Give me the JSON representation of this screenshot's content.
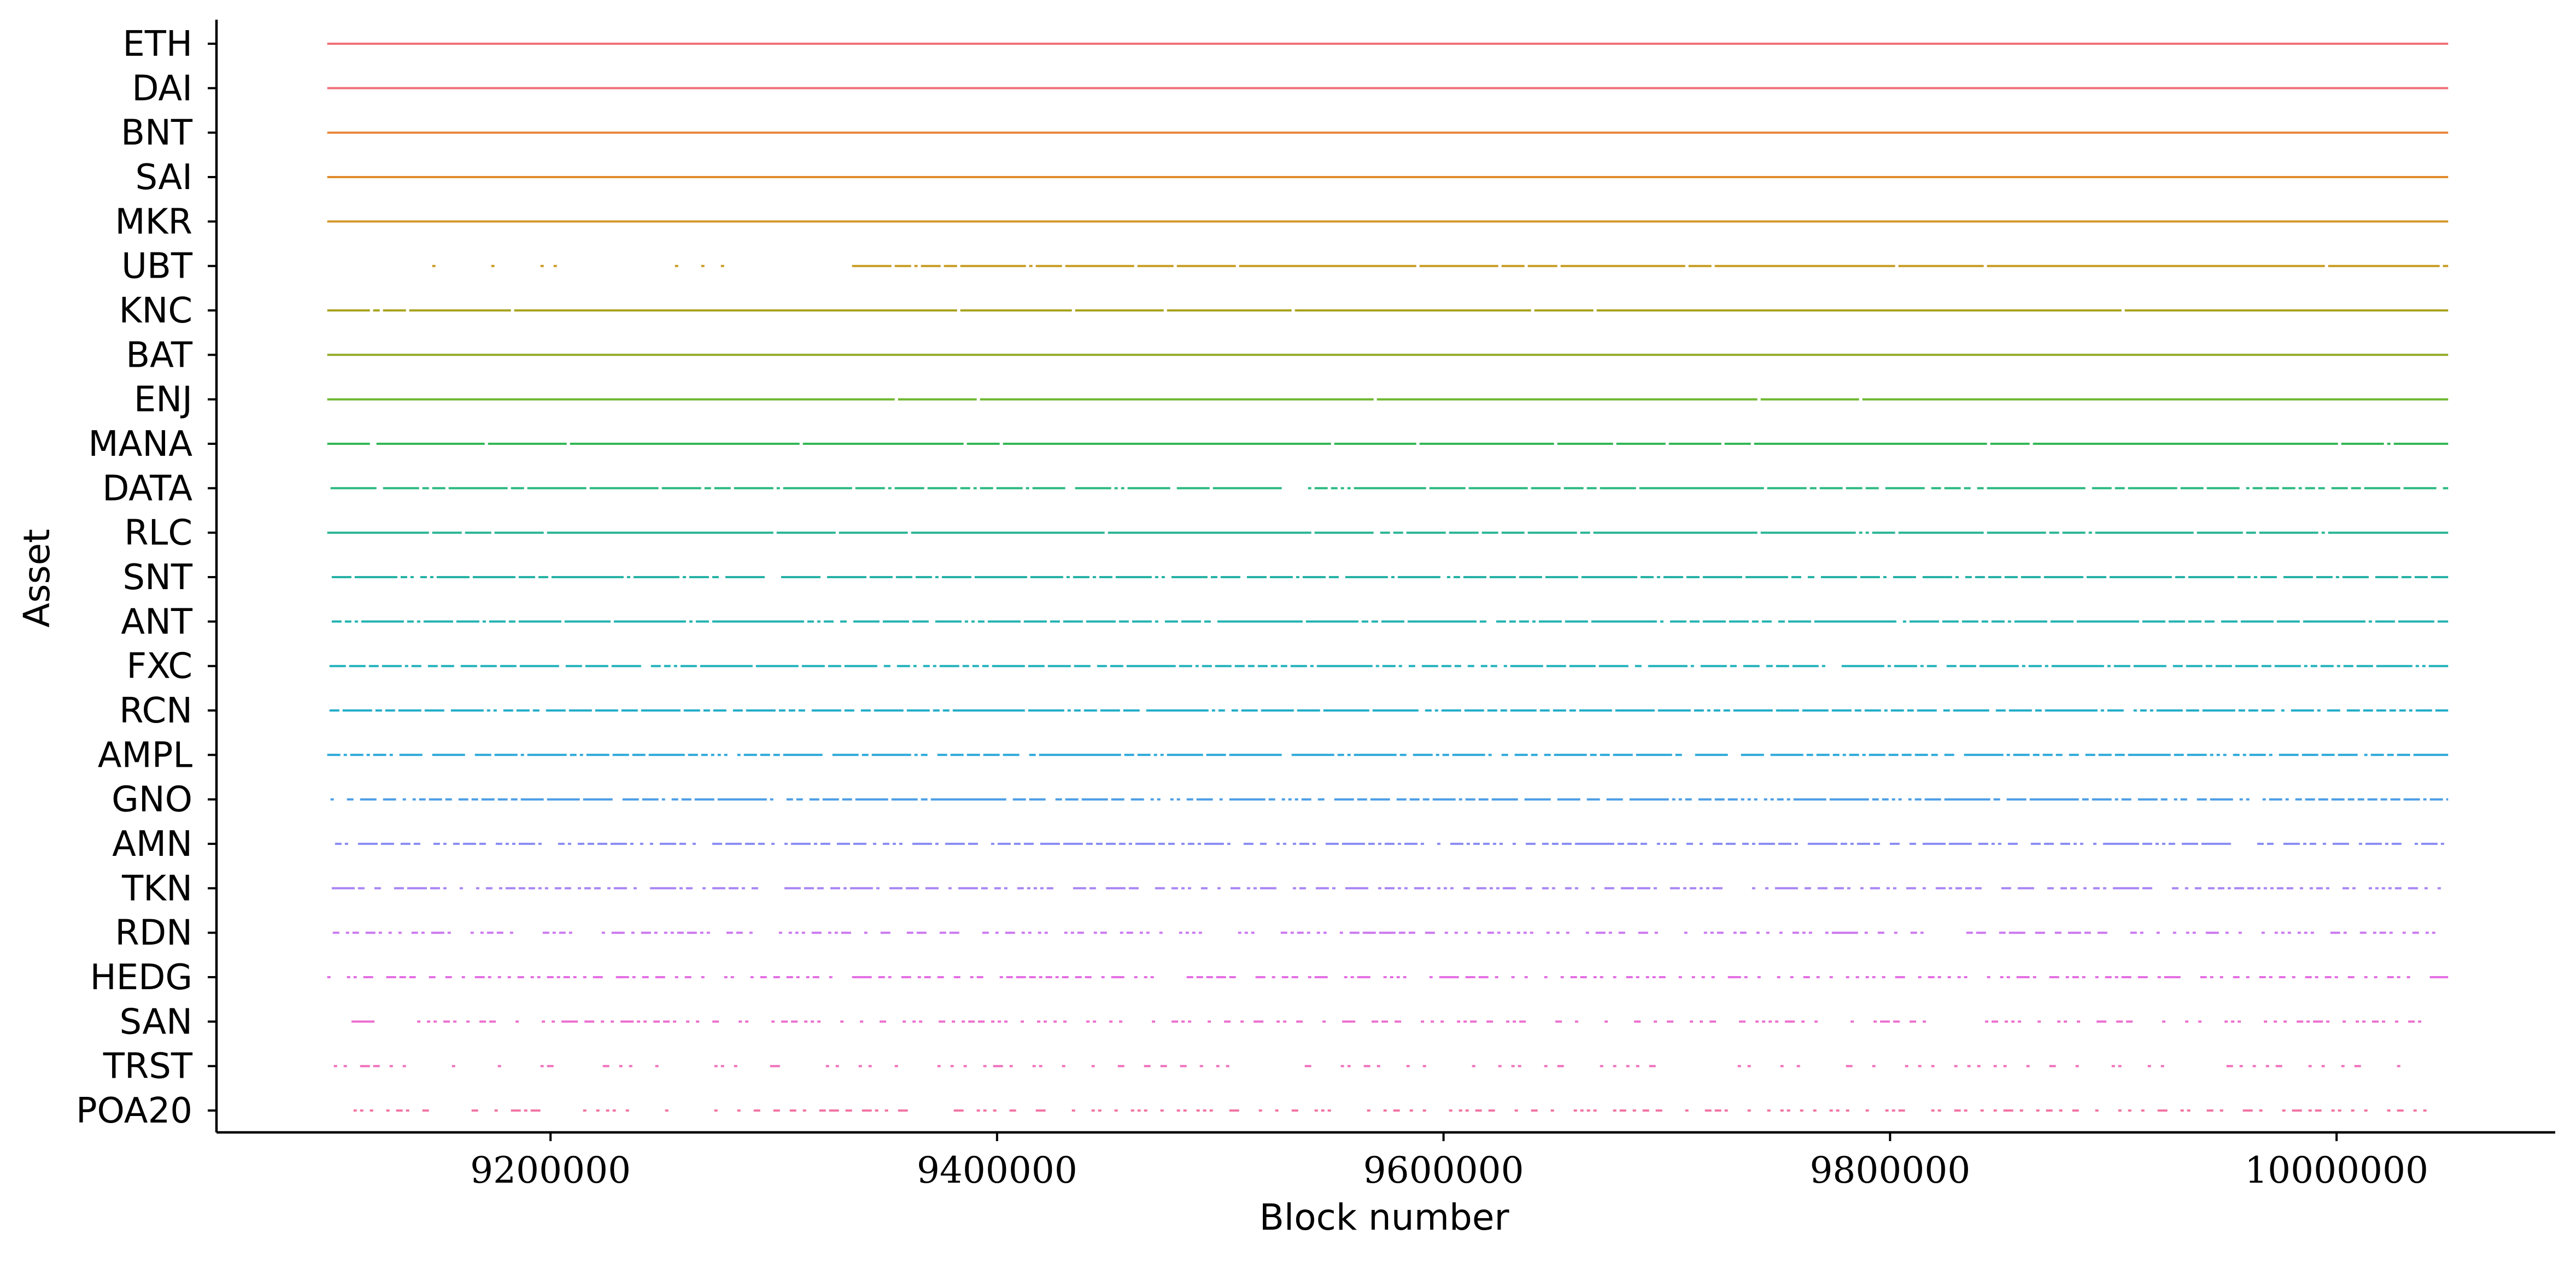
{
  "chart_data": {
    "type": "scatter",
    "title": "",
    "xlabel": "Block number",
    "ylabel": "Asset",
    "x_ticks": [
      9200000,
      9400000,
      9600000,
      9800000,
      10000000
    ],
    "x_tick_labels": [
      "9200000",
      "9400000",
      "9600000",
      "9800000",
      "10000000"
    ],
    "xlim": [
      9050000,
      10100000
    ],
    "data_range": [
      9100000,
      10050000
    ],
    "grid": false,
    "legend": "none",
    "series": [
      {
        "label": "ETH",
        "color": "#f0717a",
        "density": 1.0,
        "start": 9100000,
        "end": 10050000
      },
      {
        "label": "DAI",
        "color": "#f0717a",
        "density": 1.0,
        "start": 9100000,
        "end": 10050000
      },
      {
        "label": "BNT",
        "color": "#e8873c",
        "density": 1.0,
        "start": 9100000,
        "end": 10050000
      },
      {
        "label": "SAI",
        "color": "#e08b2b",
        "density": 1.0,
        "start": 9100000,
        "end": 10050000
      },
      {
        "label": "MKR",
        "color": "#d4972b",
        "density": 1.0,
        "start": 9100000,
        "end": 10050000
      },
      {
        "label": "UBT",
        "color": "#c79c22",
        "density": 0.97,
        "start": 9100000,
        "end": 10050000,
        "gap_from": 9300000,
        "gap_to": 9335000,
        "sparse_before": 9335000
      },
      {
        "label": "KNC",
        "color": "#a9a422",
        "density": 0.98,
        "start": 9100000,
        "end": 10050000
      },
      {
        "label": "BAT",
        "color": "#92ad2b",
        "density": 1.0,
        "start": 9100000,
        "end": 10050000
      },
      {
        "label": "ENJ",
        "color": "#6eb830",
        "density": 0.99,
        "start": 9100000,
        "end": 10050000
      },
      {
        "label": "MANA",
        "color": "#34b857",
        "density": 0.97,
        "start": 9100000,
        "end": 10050000
      },
      {
        "label": "DATA",
        "color": "#2dba82",
        "density": 0.85,
        "start": 9100000,
        "end": 10050000,
        "gap_from": 9527000,
        "gap_to": 9538000
      },
      {
        "label": "RLC",
        "color": "#2bb694",
        "density": 0.95,
        "start": 9100000,
        "end": 10050000
      },
      {
        "label": "SNT",
        "color": "#24b3a5",
        "density": 0.85,
        "start": 9102000,
        "end": 10050000
      },
      {
        "label": "ANT",
        "color": "#23b3b0",
        "density": 0.87,
        "start": 9102000,
        "end": 10050000
      },
      {
        "label": "FXC",
        "color": "#22b2bc",
        "density": 0.8,
        "start": 9101000,
        "end": 10050000
      },
      {
        "label": "RCN",
        "color": "#25aec9",
        "density": 0.8,
        "start": 9101000,
        "end": 10050000
      },
      {
        "label": "AMPL",
        "color": "#2ba8d9",
        "density": 0.78,
        "start": 9100000,
        "end": 10050000
      },
      {
        "label": "GNO",
        "color": "#4b9ee6",
        "density": 0.72,
        "start": 9100000,
        "end": 10050000
      },
      {
        "label": "AMN",
        "color": "#8b8ef2",
        "density": 0.6,
        "start": 9102000,
        "end": 10050000
      },
      {
        "label": "TKN",
        "color": "#a886f4",
        "density": 0.55,
        "start": 9102000,
        "end": 10048000
      },
      {
        "label": "RDN",
        "color": "#cb79f0",
        "density": 0.4,
        "start": 9101000,
        "end": 10046000
      },
      {
        "label": "HEDG",
        "color": "#e46ee4",
        "density": 0.4,
        "start": 9100000,
        "end": 10050000
      },
      {
        "label": "SAN",
        "color": "#ec6fcf",
        "density": 0.3,
        "start": 9105000,
        "end": 10048000
      },
      {
        "label": "TRST",
        "color": "#f070bb",
        "density": 0.18,
        "start": 9100000,
        "end": 10038000
      },
      {
        "label": "POA20",
        "color": "#f274a4",
        "density": 0.25,
        "start": 9100000,
        "end": 10048000
      }
    ]
  }
}
